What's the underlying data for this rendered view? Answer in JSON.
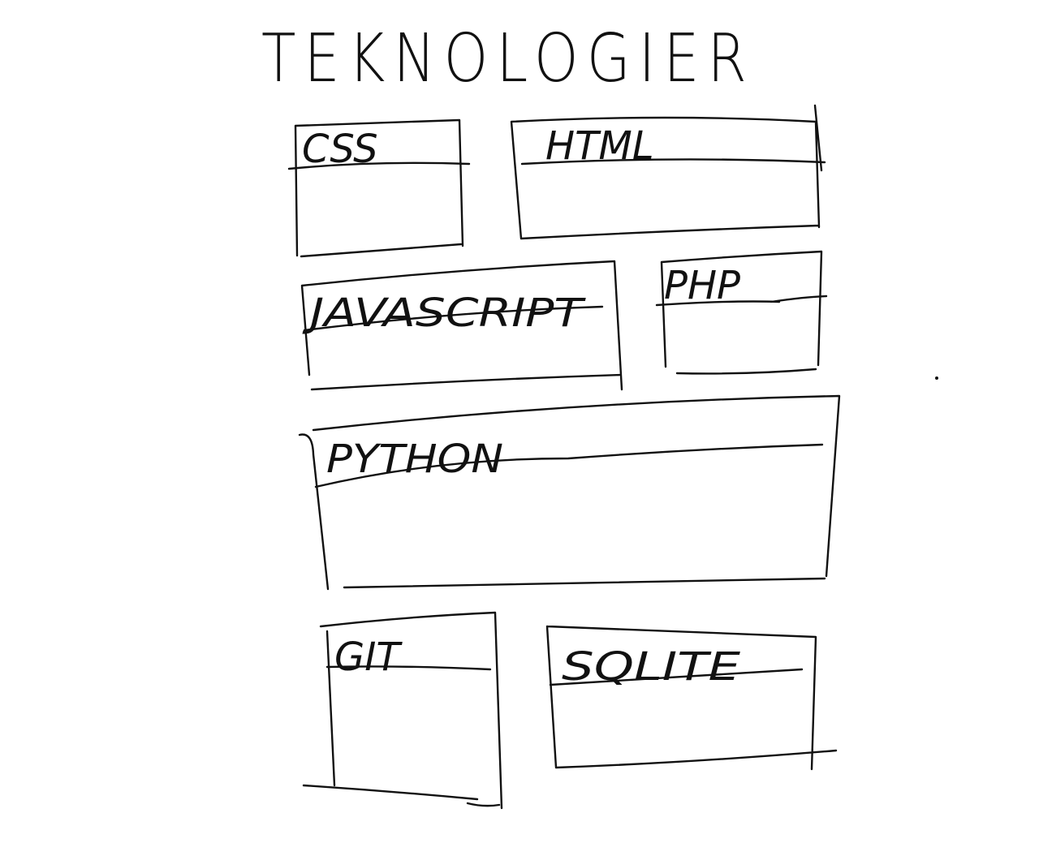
{
  "title": "TEKNOLOGIER",
  "cards": [
    {
      "label": "CSS"
    },
    {
      "label": "HTML"
    },
    {
      "label": "JAVASCRIPT"
    },
    {
      "label": "PHP"
    },
    {
      "label": "PYTHON"
    },
    {
      "label": "GIT"
    },
    {
      "label": "SQLITE"
    }
  ]
}
